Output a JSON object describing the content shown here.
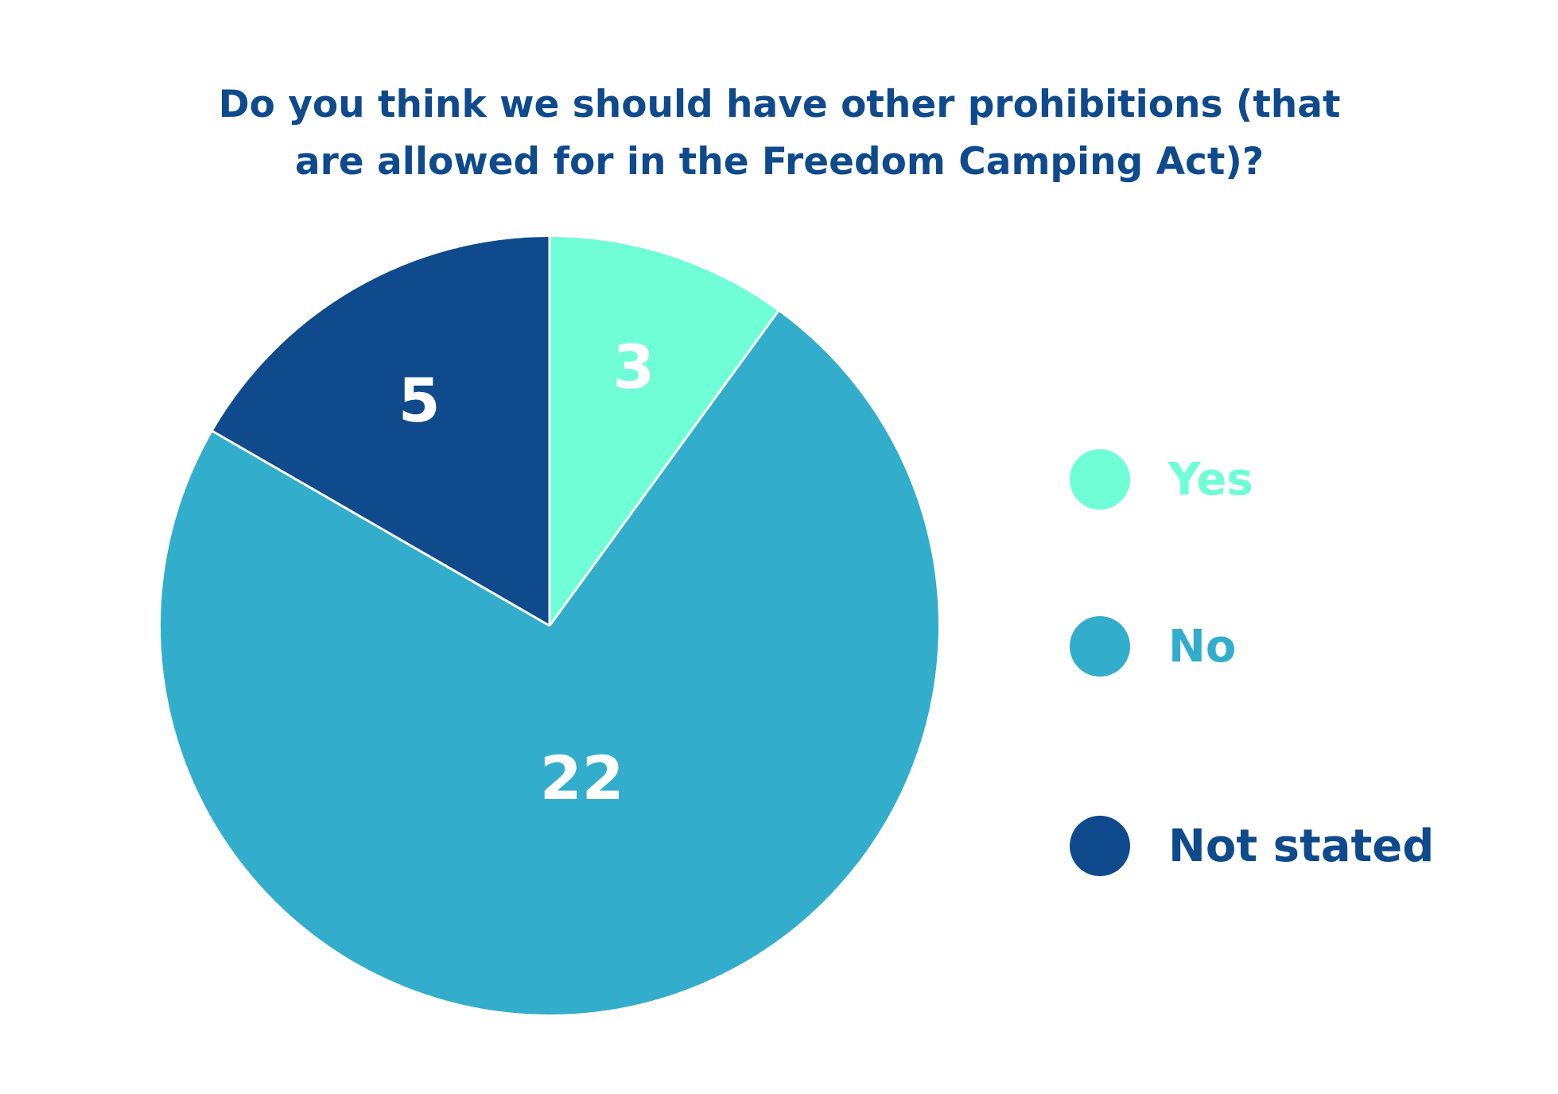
{
  "chart_data": {
    "type": "pie",
    "title_lines": [
      "Do you think we should have other prohibitions (that",
      "are allowed for in the Freedom Camping Act)?"
    ],
    "slices": [
      {
        "label": "Yes",
        "value": 3,
        "color": "#6ffed6"
      },
      {
        "label": "No",
        "value": 22,
        "color": "#33adcc"
      },
      {
        "label": "Not stated",
        "value": 5,
        "color": "#0e4a8c"
      }
    ],
    "data_label_color": "#ffffff",
    "start_angle": "12 o'clock",
    "direction": "clockwise",
    "legend_position": "right"
  }
}
